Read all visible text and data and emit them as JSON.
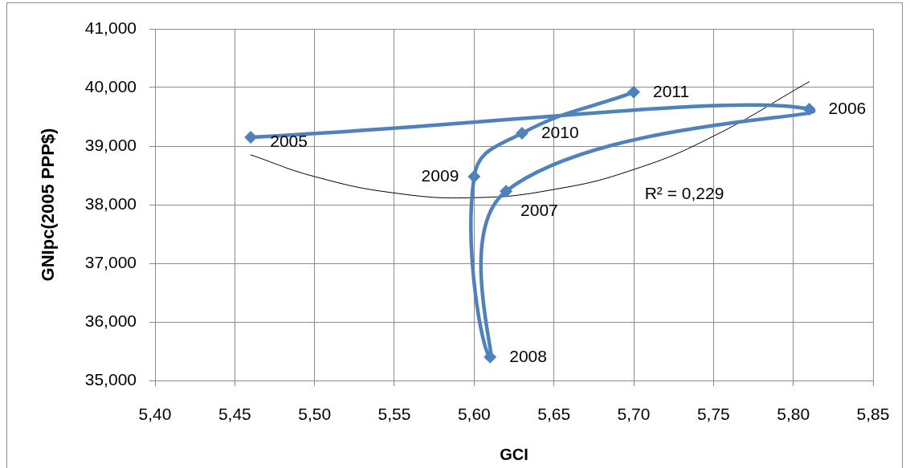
{
  "chart_data": {
    "type": "line",
    "xlabel": "GCI",
    "ylabel": "GNIpc(2005 PPP$)",
    "xlim": [
      5.4,
      5.85
    ],
    "xticks": [
      {
        "value": 5.4,
        "label": "5,40"
      },
      {
        "value": 5.45,
        "label": "5,45"
      },
      {
        "value": 5.5,
        "label": "5,50"
      },
      {
        "value": 5.55,
        "label": "5,55"
      },
      {
        "value": 5.6,
        "label": "5,60"
      },
      {
        "value": 5.65,
        "label": "5,65"
      },
      {
        "value": 5.7,
        "label": "5,70"
      },
      {
        "value": 5.75,
        "label": "5,75"
      },
      {
        "value": 5.8,
        "label": "5,80"
      },
      {
        "value": 5.85,
        "label": "5,85"
      }
    ],
    "ylim": [
      35,
      41
    ],
    "yticks": [
      {
        "value": 35,
        "label": "35,000"
      },
      {
        "value": 36,
        "label": "36,000"
      },
      {
        "value": 37,
        "label": "37,000"
      },
      {
        "value": 38,
        "label": "38,000"
      },
      {
        "value": 39,
        "label": "39,000"
      },
      {
        "value": 40,
        "label": "40,000"
      },
      {
        "value": 41,
        "label": "41,000"
      }
    ],
    "grid": true,
    "marker": "diamond",
    "line_style": "solid",
    "series": [
      {
        "color": "#4f81bd",
        "x": [
          5.46,
          5.81,
          5.62,
          5.61,
          5.6,
          5.63,
          5.7
        ],
        "values": [
          39.15,
          39.63,
          38.23,
          35.4,
          38.48,
          39.22,
          39.92
        ]
      },
      {
        "type": "line",
        "color": "#000000",
        "marker": "none",
        "x": [
          5.46,
          5.5,
          5.55,
          5.6,
          5.65,
          5.7,
          5.75,
          5.81
        ],
        "values": [
          38.85,
          38.48,
          38.2,
          38.12,
          38.26,
          38.6,
          39.17,
          40.1
        ]
      }
    ],
    "annotations": [
      {
        "text": "2005",
        "x": 5.46,
        "y": 39.15
      },
      {
        "text": "2006",
        "x": 5.81,
        "y": 39.63
      },
      {
        "text": "2007",
        "x": 5.62,
        "y": 38.23
      },
      {
        "text": "2008",
        "x": 5.61,
        "y": 35.4
      },
      {
        "text": "2009",
        "x": 5.6,
        "y": 38.48
      },
      {
        "text": "2010",
        "x": 5.63,
        "y": 39.22
      },
      {
        "text": "2011",
        "x": 5.7,
        "y": 39.92
      },
      "R² = 0,229"
    ]
  }
}
